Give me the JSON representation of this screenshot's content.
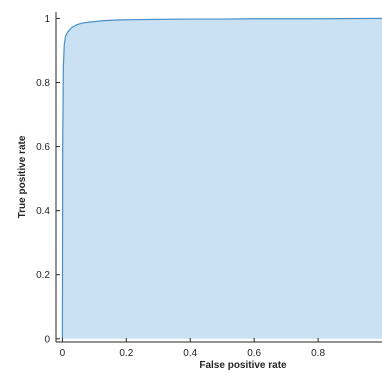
{
  "chart_data": {
    "type": "area",
    "xlabel": "False positive rate",
    "ylabel": "True positive rate",
    "xlim": [
      -0.02,
      1.0
    ],
    "ylim": [
      -0.01,
      1.02
    ],
    "xticks": [
      0,
      0.2,
      0.4,
      0.6,
      0.8
    ],
    "xtick_labels": [
      "0",
      "0.2",
      "0.4",
      "0.6",
      "0.8"
    ],
    "yticks": [
      0,
      0.2,
      0.4,
      0.6,
      0.8,
      1
    ],
    "ytick_labels": [
      "0",
      "0.2",
      "0.4",
      "0.6",
      "0.8",
      "1"
    ],
    "grid": false,
    "series": [
      {
        "x": [
          0,
          0.001,
          0.003,
          0.006,
          0.01,
          0.015,
          0.02,
          0.03,
          0.045,
          0.06,
          0.08,
          0.1,
          0.13,
          0.17,
          0.22,
          0.3,
          0.4,
          0.5,
          0.6,
          0.8,
          1.0
        ],
        "y": [
          0,
          0.6,
          0.85,
          0.92,
          0.945,
          0.955,
          0.962,
          0.972,
          0.98,
          0.985,
          0.988,
          0.99,
          0.993,
          0.995,
          0.996,
          0.997,
          0.998,
          0.998,
          0.999,
          0.999,
          1.0
        ],
        "line_color": "#4a8fc7",
        "fill_color": "#c9e1f3"
      }
    ]
  }
}
